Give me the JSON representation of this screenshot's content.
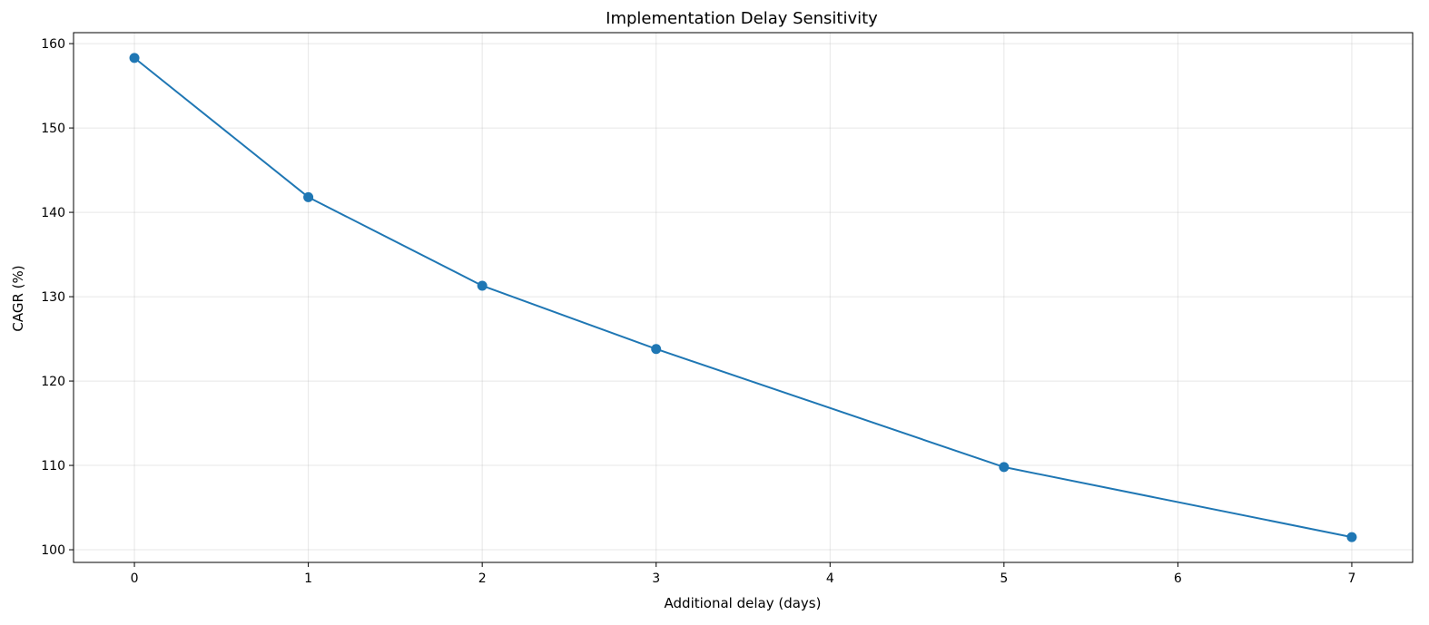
{
  "chart_data": {
    "type": "line",
    "title": "Implementation Delay Sensitivity",
    "xlabel": "Additional delay (days)",
    "ylabel": "CAGR (%)",
    "xlim": [
      -0.35,
      7.35
    ],
    "ylim": [
      98.5,
      161.3
    ],
    "x_ticks": [
      0,
      1,
      2,
      3,
      4,
      5,
      6,
      7
    ],
    "y_ticks": [
      100,
      110,
      120,
      130,
      140,
      150,
      160
    ],
    "grid": true,
    "legend": "none",
    "series": [
      {
        "color": "#1f77b4",
        "marker": "circle",
        "x": [
          0,
          1,
          2,
          3,
          5,
          7
        ],
        "y": [
          158.3,
          141.8,
          131.3,
          123.8,
          109.8,
          101.5
        ]
      }
    ]
  }
}
